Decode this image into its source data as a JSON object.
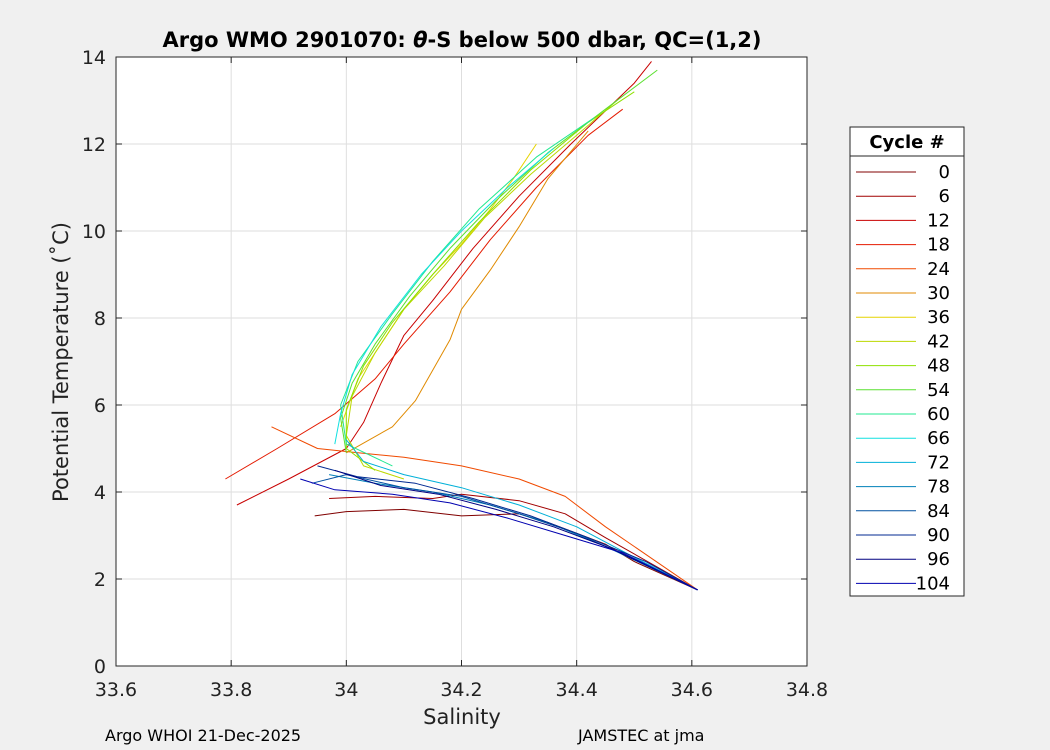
{
  "chart_data": {
    "type": "line",
    "title_prefix": "Argo WMO 2901070: ",
    "title_theta": "θ",
    "title_suffix": "-S below 500 dbar,  QC=(1,2)",
    "xlabel": "Salinity",
    "ylabel": "Potential Temperature (˚C)",
    "xlim": [
      33.6,
      34.8
    ],
    "ylim": [
      0,
      14
    ],
    "xticks": [
      33.6,
      33.8,
      34.0,
      34.2,
      34.4,
      34.6,
      34.8
    ],
    "xtick_labels": [
      "33.6",
      "33.8",
      "34",
      "34.2",
      "34.4",
      "34.6",
      "34.8"
    ],
    "yticks": [
      0,
      2,
      4,
      6,
      8,
      10,
      12,
      14
    ],
    "ytick_labels": [
      "0",
      "2",
      "4",
      "6",
      "8",
      "10",
      "12",
      "14"
    ],
    "grid": true,
    "legend": {
      "title": "Cycle #",
      "placement": "right-outside",
      "entries": [
        {
          "label": "0",
          "color": "#800000"
        },
        {
          "label": "6",
          "color": "#a10000"
        },
        {
          "label": "12",
          "color": "#c80000"
        },
        {
          "label": "18",
          "color": "#e41a00"
        },
        {
          "label": "24",
          "color": "#f04a00"
        },
        {
          "label": "30",
          "color": "#e08a00"
        },
        {
          "label": "36",
          "color": "#e6d400"
        },
        {
          "label": "42",
          "color": "#bcd800"
        },
        {
          "label": "48",
          "color": "#8ee000"
        },
        {
          "label": "54",
          "color": "#5ae030"
        },
        {
          "label": "60",
          "color": "#20e890"
        },
        {
          "label": "66",
          "color": "#10e0e0"
        },
        {
          "label": "72",
          "color": "#00b0d8"
        },
        {
          "label": "78",
          "color": "#0080b8"
        },
        {
          "label": "84",
          "color": "#0050a0"
        },
        {
          "label": "90",
          "color": "#002890"
        },
        {
          "label": "96",
          "color": "#000080"
        },
        {
          "label": "104",
          "color": "#0000b0"
        }
      ]
    },
    "series": [
      {
        "name": "0",
        "points": [
          [
            33.945,
            3.45
          ],
          [
            34.0,
            3.55
          ],
          [
            34.1,
            3.6
          ],
          [
            34.2,
            3.45
          ],
          [
            34.3,
            3.5
          ],
          [
            34.35,
            3.3
          ],
          [
            34.45,
            2.8
          ],
          [
            34.5,
            2.4
          ],
          [
            34.61,
            1.75
          ]
        ]
      },
      {
        "name": "6",
        "points": [
          [
            33.97,
            3.85
          ],
          [
            34.05,
            3.9
          ],
          [
            34.15,
            3.85
          ],
          [
            34.2,
            3.95
          ],
          [
            34.3,
            3.8
          ],
          [
            34.38,
            3.5
          ],
          [
            34.45,
            2.95
          ],
          [
            34.61,
            1.75
          ]
        ]
      },
      {
        "name": "12",
        "points": [
          [
            33.81,
            3.7
          ],
          [
            33.9,
            4.3
          ],
          [
            34.0,
            5.0
          ],
          [
            34.03,
            5.6
          ],
          [
            34.06,
            6.5
          ],
          [
            34.1,
            7.6
          ],
          [
            34.15,
            8.4
          ],
          [
            34.22,
            9.6
          ],
          [
            34.3,
            10.8
          ],
          [
            34.39,
            12.0
          ],
          [
            34.5,
            13.4
          ],
          [
            34.53,
            13.9
          ]
        ]
      },
      {
        "name": "18",
        "points": [
          [
            33.79,
            4.3
          ],
          [
            33.88,
            5.0
          ],
          [
            33.98,
            5.8
          ],
          [
            34.05,
            6.6
          ],
          [
            34.1,
            7.4
          ],
          [
            34.18,
            8.6
          ],
          [
            34.25,
            9.8
          ],
          [
            34.33,
            11.0
          ],
          [
            34.42,
            12.2
          ],
          [
            34.48,
            12.8
          ]
        ]
      },
      {
        "name": "24",
        "points": [
          [
            33.87,
            5.5
          ],
          [
            33.95,
            5.0
          ],
          [
            34.02,
            4.9
          ],
          [
            34.1,
            4.8
          ],
          [
            34.2,
            4.6
          ],
          [
            34.3,
            4.3
          ],
          [
            34.38,
            3.9
          ],
          [
            34.45,
            3.2
          ],
          [
            34.61,
            1.75
          ]
        ]
      },
      {
        "name": "30",
        "points": [
          [
            34.0,
            4.9
          ],
          [
            34.08,
            5.5
          ],
          [
            34.12,
            6.1
          ],
          [
            34.15,
            6.8
          ],
          [
            34.18,
            7.5
          ],
          [
            34.2,
            8.2
          ],
          [
            34.25,
            9.1
          ],
          [
            34.3,
            10.1
          ],
          [
            34.35,
            11.2
          ],
          [
            34.42,
            12.3
          ]
        ]
      },
      {
        "name": "36",
        "points": [
          [
            33.99,
            5.5
          ],
          [
            34.02,
            6.6
          ],
          [
            34.06,
            7.4
          ],
          [
            34.1,
            8.2
          ],
          [
            34.15,
            9.0
          ],
          [
            34.2,
            9.7
          ],
          [
            34.25,
            10.5
          ],
          [
            34.29,
            11.2
          ],
          [
            34.33,
            12.0
          ]
        ]
      },
      {
        "name": "42",
        "points": [
          [
            34.1,
            4.3
          ],
          [
            34.03,
            4.6
          ],
          [
            34.0,
            5.3
          ],
          [
            34.01,
            6.2
          ],
          [
            34.05,
            7.2
          ],
          [
            34.1,
            8.2
          ],
          [
            34.17,
            9.2
          ],
          [
            34.24,
            10.3
          ],
          [
            34.32,
            11.3
          ],
          [
            34.4,
            12.2
          ],
          [
            34.47,
            13.0
          ]
        ]
      },
      {
        "name": "48",
        "points": [
          [
            34.05,
            4.5
          ],
          [
            34.0,
            5.0
          ],
          [
            34.0,
            5.9
          ],
          [
            34.03,
            6.9
          ],
          [
            34.08,
            7.9
          ],
          [
            34.15,
            9.0
          ],
          [
            34.23,
            10.2
          ],
          [
            34.32,
            11.4
          ],
          [
            34.42,
            12.5
          ],
          [
            34.5,
            13.2
          ]
        ]
      },
      {
        "name": "54",
        "points": [
          [
            34.0,
            4.9
          ],
          [
            33.99,
            5.7
          ],
          [
            34.01,
            6.5
          ],
          [
            34.05,
            7.4
          ],
          [
            34.11,
            8.5
          ],
          [
            34.18,
            9.6
          ],
          [
            34.26,
            10.7
          ],
          [
            34.35,
            11.8
          ],
          [
            34.46,
            12.9
          ],
          [
            34.54,
            13.7
          ]
        ]
      },
      {
        "name": "60",
        "points": [
          [
            34.08,
            4.6
          ],
          [
            34.0,
            5.1
          ],
          [
            33.99,
            6.0
          ],
          [
            34.02,
            7.0
          ],
          [
            34.08,
            8.1
          ],
          [
            34.15,
            9.3
          ],
          [
            34.23,
            10.5
          ],
          [
            34.33,
            11.7
          ],
          [
            34.43,
            12.6
          ]
        ]
      },
      {
        "name": "66",
        "points": [
          [
            33.98,
            5.1
          ],
          [
            33.99,
            5.8
          ],
          [
            34.01,
            6.7
          ],
          [
            34.06,
            7.8
          ],
          [
            34.13,
            9.0
          ],
          [
            34.2,
            10.0
          ],
          [
            34.28,
            11.0
          ],
          [
            34.36,
            11.9
          ]
        ]
      },
      {
        "name": "72",
        "points": [
          [
            34.0,
            5.2
          ],
          [
            34.03,
            4.7
          ],
          [
            34.1,
            4.4
          ],
          [
            34.2,
            4.1
          ],
          [
            34.3,
            3.7
          ],
          [
            34.4,
            3.2
          ],
          [
            34.5,
            2.5
          ],
          [
            34.61,
            1.75
          ]
        ]
      },
      {
        "name": "78",
        "points": [
          [
            33.97,
            4.4
          ],
          [
            34.05,
            4.2
          ],
          [
            34.15,
            4.0
          ],
          [
            34.25,
            3.7
          ],
          [
            34.35,
            3.3
          ],
          [
            34.45,
            2.75
          ],
          [
            34.61,
            1.75
          ]
        ]
      },
      {
        "name": "84",
        "points": [
          [
            33.94,
            4.2
          ],
          [
            34.0,
            4.4
          ],
          [
            34.1,
            4.1
          ],
          [
            34.2,
            3.9
          ],
          [
            34.3,
            3.5
          ],
          [
            34.4,
            3.05
          ],
          [
            34.5,
            2.45
          ],
          [
            34.61,
            1.75
          ]
        ]
      },
      {
        "name": "90",
        "points": [
          [
            33.95,
            4.6
          ],
          [
            34.02,
            4.35
          ],
          [
            34.12,
            4.2
          ],
          [
            34.22,
            3.85
          ],
          [
            34.32,
            3.45
          ],
          [
            34.42,
            2.95
          ],
          [
            34.52,
            2.4
          ],
          [
            34.61,
            1.75
          ]
        ]
      },
      {
        "name": "96",
        "points": [
          [
            33.98,
            4.5
          ],
          [
            34.06,
            4.15
          ],
          [
            34.16,
            3.95
          ],
          [
            34.26,
            3.6
          ],
          [
            34.36,
            3.2
          ],
          [
            34.46,
            2.7
          ],
          [
            34.61,
            1.75
          ]
        ]
      },
      {
        "name": "104",
        "points": [
          [
            33.92,
            4.3
          ],
          [
            33.98,
            4.05
          ],
          [
            34.08,
            3.95
          ],
          [
            34.18,
            3.75
          ],
          [
            34.28,
            3.4
          ],
          [
            34.38,
            3.0
          ],
          [
            34.48,
            2.6
          ],
          [
            34.61,
            1.75
          ]
        ]
      }
    ]
  },
  "footer": {
    "left": "Argo WHOI 21-Dec-2025",
    "right": "JAMSTEC at jma"
  }
}
